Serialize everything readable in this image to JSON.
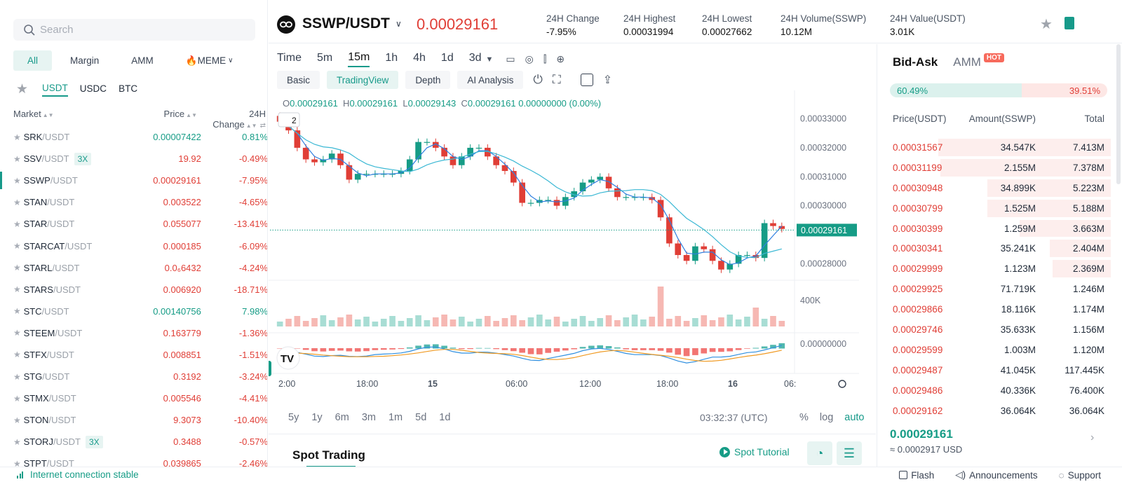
{
  "left": {
    "search_placeholder": "Search",
    "market_tabs": [
      "All",
      "Margin",
      "AMM",
      "🔥MEME"
    ],
    "quote_tabs": [
      "USDT",
      "USDC",
      "BTC"
    ],
    "headers": {
      "market": "Market",
      "price": "Price",
      "change": "24H Change"
    },
    "rows": [
      {
        "base": "SRK",
        "quote": "/USDT",
        "lev": "",
        "price": "0.00007422",
        "change": "0.81%",
        "dir": "up"
      },
      {
        "base": "SSV",
        "quote": "/USDT",
        "lev": "3X",
        "price": "19.92",
        "change": "-0.49%",
        "dir": "down"
      },
      {
        "base": "SSWP",
        "quote": "/USDT",
        "lev": "",
        "price": "0.00029161",
        "change": "-7.95%",
        "dir": "down"
      },
      {
        "base": "STAN",
        "quote": "/USDT",
        "lev": "",
        "price": "0.003522",
        "change": "-4.65%",
        "dir": "down"
      },
      {
        "base": "STAR",
        "quote": "/USDT",
        "lev": "",
        "price": "0.055077",
        "change": "-13.41%",
        "dir": "down"
      },
      {
        "base": "STARCAT",
        "quote": "/USDT",
        "lev": "",
        "price": "0.000185",
        "change": "-6.09%",
        "dir": "down"
      },
      {
        "base": "STARL",
        "quote": "/USDT",
        "lev": "",
        "price": "0.0₆6432",
        "change": "-4.24%",
        "dir": "down"
      },
      {
        "base": "STARS",
        "quote": "/USDT",
        "lev": "",
        "price": "0.006920",
        "change": "-18.71%",
        "dir": "down"
      },
      {
        "base": "STC",
        "quote": "/USDT",
        "lev": "",
        "price": "0.00140756",
        "change": "7.98%",
        "dir": "up"
      },
      {
        "base": "STEEM",
        "quote": "/USDT",
        "lev": "",
        "price": "0.163779",
        "change": "-1.36%",
        "dir": "down"
      },
      {
        "base": "STFX",
        "quote": "/USDT",
        "lev": "",
        "price": "0.008851",
        "change": "-1.51%",
        "dir": "down"
      },
      {
        "base": "STG",
        "quote": "/USDT",
        "lev": "",
        "price": "0.3192",
        "change": "-3.24%",
        "dir": "down"
      },
      {
        "base": "STMX",
        "quote": "/USDT",
        "lev": "",
        "price": "0.005546",
        "change": "-4.41%",
        "dir": "down"
      },
      {
        "base": "STON",
        "quote": "/USDT",
        "lev": "",
        "price": "9.3073",
        "change": "-10.40%",
        "dir": "down"
      },
      {
        "base": "STORJ",
        "quote": "/USDT",
        "lev": "3X",
        "price": "0.3488",
        "change": "-0.57%",
        "dir": "down"
      },
      {
        "base": "STPT",
        "quote": "/USDT",
        "lev": "",
        "price": "0.039865",
        "change": "-2.46%",
        "dir": "down"
      }
    ]
  },
  "header": {
    "symbol": "SSWP/USDT",
    "last_price": "0.00029161",
    "stats": [
      {
        "label": "24H Change",
        "value": "-7.95%",
        "dir": "down"
      },
      {
        "label": "24H Highest",
        "value": "0.00031994",
        "dir": ""
      },
      {
        "label": "24H Lowest",
        "value": "0.00027662",
        "dir": ""
      },
      {
        "label": "24H Volume(SSWP)",
        "value": "10.12M",
        "dir": ""
      },
      {
        "label": "24H Value(USDT)",
        "value": "3.01K",
        "dir": ""
      }
    ]
  },
  "chart": {
    "timeframes": [
      "Time",
      "5m",
      "15m",
      "1h",
      "4h",
      "1d",
      "3d"
    ],
    "active_timeframe": "15m",
    "views": [
      "Basic",
      "TradingView",
      "Depth",
      "AI Analysis"
    ],
    "active_view": "TradingView",
    "ohlc": {
      "o": "0.00029161",
      "h": "0.00029161",
      "l": "0.00029143",
      "c": "0.00029161",
      "chg": "0.00000000 (0.00%)"
    },
    "legend_badge": "2",
    "price_ticks": [
      "0.00033000",
      "0.00032000",
      "0.00031000",
      "0.00030000",
      "0.00029161",
      "0.00028000"
    ],
    "volume_tick": "400K",
    "macd_tick": "0.00000000",
    "time_ticks": [
      "2:00",
      "18:00",
      "15",
      "06:00",
      "12:00",
      "18:00",
      "16",
      "06:"
    ],
    "ranges": [
      "5y",
      "1y",
      "6m",
      "3m",
      "1m",
      "5d",
      "1d"
    ],
    "clock": "03:32:37 (UTC)",
    "axis_options": [
      "%",
      "log",
      "auto"
    ]
  },
  "chart_data": {
    "type": "candlestick",
    "series": [
      {
        "name": "SSWP/USDT",
        "close": [
          0.000329,
          0.000326,
          0.00032,
          0.000316,
          0.000315,
          0.000316,
          0.000318,
          0.000314,
          0.000309,
          0.000311,
          0.000311,
          0.000311,
          0.000311,
          0.000311,
          0.000312,
          0.000316,
          0.000322,
          0.000322,
          0.00032,
          0.000317,
          0.000314,
          0.000317,
          0.00032,
          0.00032,
          0.000317,
          0.000314,
          0.000312,
          0.000308,
          0.000301,
          0.000301,
          0.000302,
          0.000302,
          0.0003,
          0.000303,
          0.000305,
          0.000308,
          0.000309,
          0.00031,
          0.000306,
          0.000303,
          0.000303,
          0.000303,
          0.000303,
          0.000302,
          0.000296,
          0.000287,
          0.000283,
          0.000281,
          0.000286,
          0.000285,
          0.000281,
          0.000278,
          0.00028,
          0.000283,
          0.000283,
          0.000282,
          0.000294,
          0.000293,
          0.000292
        ]
      }
    ],
    "ylim": [
      0.000276,
      0.000334
    ]
  },
  "book": {
    "tabs": [
      "Bid-Ask",
      "AMM"
    ],
    "hot": "HOT",
    "buy_ratio": "60.49%",
    "sell_ratio": "39.51%",
    "headers": {
      "price": "Price(USDT)",
      "amount": "Amount(SSWP)",
      "total": "Total"
    },
    "asks": [
      {
        "price": "0.00031567",
        "amount": "34.547K",
        "total": "7.413M",
        "depth": 0.74
      },
      {
        "price": "0.00031199",
        "amount": "2.155M",
        "total": "7.378M",
        "depth": 0.73
      },
      {
        "price": "0.00030948",
        "amount": "34.899K",
        "total": "5.223M",
        "depth": 0.53
      },
      {
        "price": "0.00030799",
        "amount": "1.525M",
        "total": "5.188M",
        "depth": 0.53
      },
      {
        "price": "0.00030399",
        "amount": "1.259M",
        "total": "3.663M",
        "depth": 0.39
      },
      {
        "price": "0.00030341",
        "amount": "35.241K",
        "total": "2.404M",
        "depth": 0.26
      },
      {
        "price": "0.00029999",
        "amount": "1.123M",
        "total": "2.369M",
        "depth": 0.25
      },
      {
        "price": "0.00029925",
        "amount": "71.719K",
        "total": "1.246M",
        "depth": 0
      },
      {
        "price": "0.00029866",
        "amount": "18.116K",
        "total": "1.174M",
        "depth": 0
      },
      {
        "price": "0.00029746",
        "amount": "35.633K",
        "total": "1.156M",
        "depth": 0
      },
      {
        "price": "0.00029599",
        "amount": "1.003M",
        "total": "1.120M",
        "depth": 0
      },
      {
        "price": "0.00029487",
        "amount": "41.045K",
        "total": "117.445K",
        "depth": 0
      },
      {
        "price": "0.00029486",
        "amount": "40.336K",
        "total": "76.400K",
        "depth": 0
      },
      {
        "price": "0.00029162",
        "amount": "36.064K",
        "total": "36.064K",
        "depth": 0
      }
    ],
    "last_price": "0.00029161",
    "last_usd": "≈ 0.0002917 USD"
  },
  "spot": {
    "title": "Spot Trading",
    "tutorial": "Spot Tutorial"
  },
  "footer": {
    "status": "Internet connection stable",
    "links": [
      "Flash",
      "Announcements",
      "Support"
    ]
  },
  "colors": {
    "up": "#169c86",
    "down": "#e03e36",
    "accent": "#179a8a"
  }
}
